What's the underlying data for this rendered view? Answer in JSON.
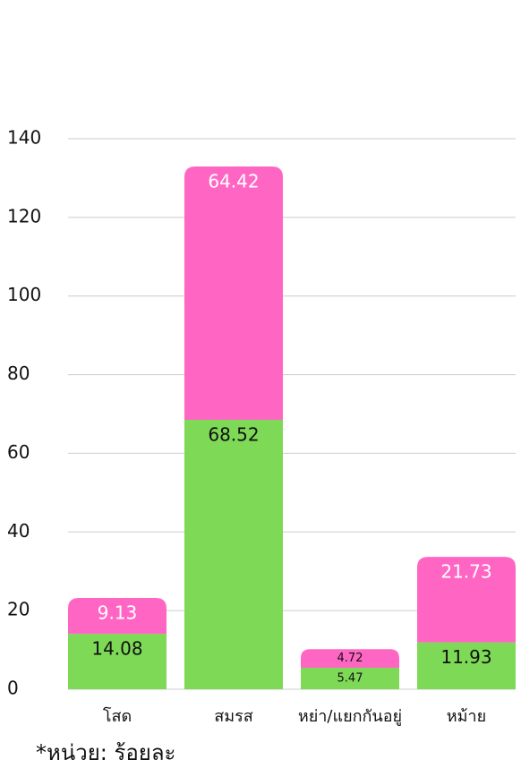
{
  "chart_data": {
    "type": "stacked_bar",
    "categories": [
      "โสด",
      "สมรส",
      "หย่า/แยกกันอยู่",
      "หม้าย"
    ],
    "series": [
      {
        "color": "#7ed957",
        "values": [
          14.08,
          68.52,
          5.47,
          11.93
        ]
      },
      {
        "color": "#ff66c4",
        "values": [
          9.13,
          64.42,
          4.72,
          21.73
        ]
      }
    ],
    "ylim": [
      0,
      140
    ],
    "yticks": [
      0,
      20,
      40,
      60,
      80,
      100,
      120,
      140
    ],
    "grid": true,
    "footnote": "*หน่วย: ร้อยละ"
  }
}
